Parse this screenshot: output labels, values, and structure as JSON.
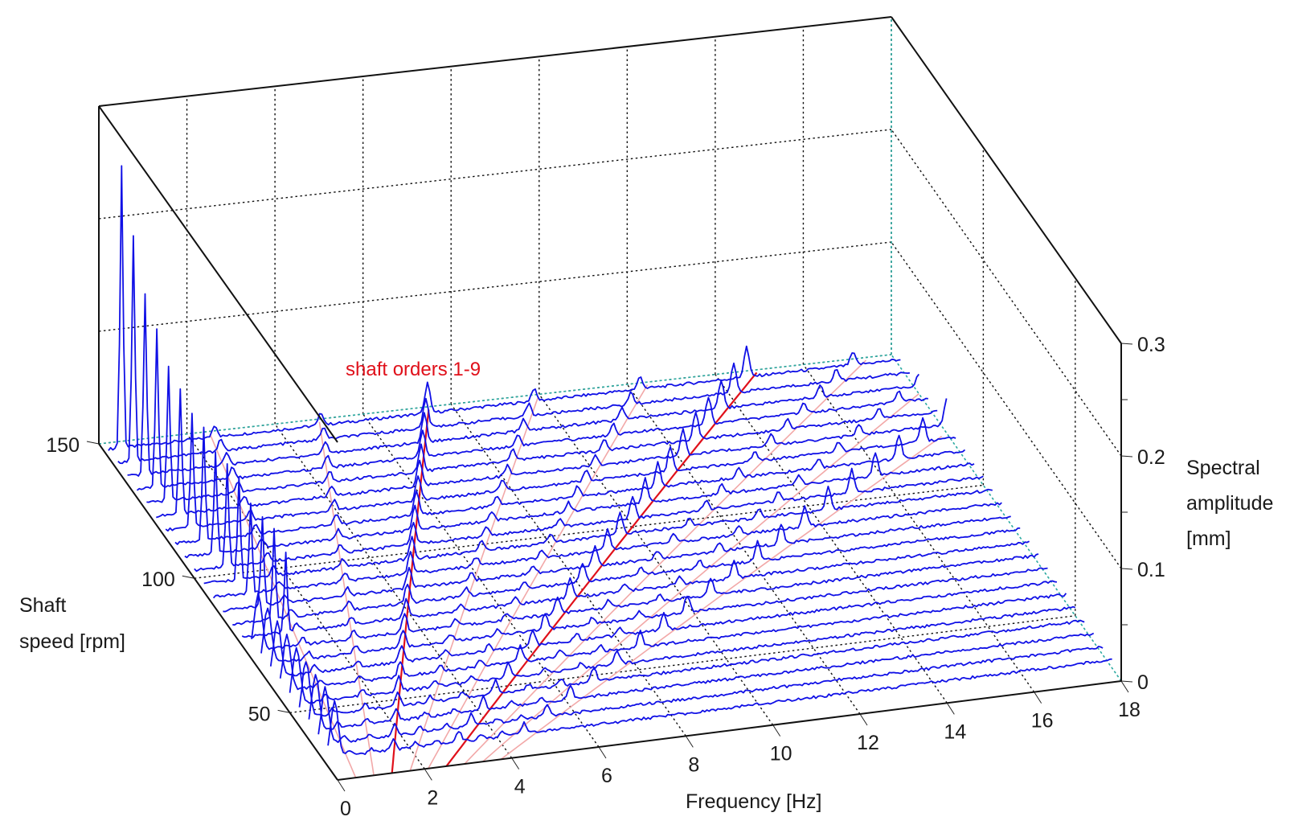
{
  "chart_data": {
    "type": "waterfall",
    "annotation": "shaft orders 1-9",
    "x_axis": {
      "label": "Frequency [Hz]",
      "ticks": [
        0,
        2,
        4,
        6,
        8,
        10,
        12,
        14,
        16,
        18
      ],
      "range": [
        0,
        18
      ]
    },
    "y_axis": {
      "label_lines": [
        "Shaft",
        "speed [rpm]"
      ],
      "ticks": [
        50,
        100,
        150
      ],
      "range": [
        25,
        150
      ]
    },
    "z_axis": {
      "label_lines": [
        "Spectral",
        "amplitude",
        "[mm]"
      ],
      "ticks": [
        "0",
        "0.1",
        "0.2",
        "0.3"
      ],
      "range": [
        0,
        0.3
      ]
    },
    "shaft_orders": [
      1,
      2,
      3,
      4,
      5,
      6,
      7,
      8,
      9
    ],
    "highlighted_orders": [
      3,
      6
    ],
    "spectra_speeds_rpm": [
      145,
      140,
      135,
      130,
      125,
      120,
      115,
      110,
      105,
      100,
      95,
      90,
      85,
      80,
      75,
      70,
      65,
      60,
      55,
      50,
      45,
      40,
      35,
      30
    ],
    "low_frequency_peaks": [
      {
        "speed": 145,
        "f": 0.3,
        "amp": 0.25
      },
      {
        "speed": 140,
        "f": 0.35,
        "amp": 0.2
      },
      {
        "speed": 135,
        "f": 0.4,
        "amp": 0.16
      },
      {
        "speed": 130,
        "f": 0.45,
        "amp": 0.14
      },
      {
        "speed": 125,
        "f": 0.5,
        "amp": 0.12
      },
      {
        "speed": 120,
        "f": 0.55,
        "amp": 0.11
      },
      {
        "speed": 115,
        "f": 0.6,
        "amp": 0.1
      },
      {
        "speed": 110,
        "f": 0.65,
        "amp": 0.1
      },
      {
        "speed": 105,
        "f": 0.7,
        "amp": 0.09
      },
      {
        "speed": 100,
        "f": 0.75,
        "amp": 0.09
      },
      {
        "speed": 95,
        "f": 0.8,
        "amp": 0.09
      },
      {
        "speed": 90,
        "f": 0.85,
        "amp": 0.08
      },
      {
        "speed": 85,
        "f": 0.9,
        "amp": 0.08
      },
      {
        "speed": 80,
        "f": 0.95,
        "amp": 0.08
      },
      {
        "speed": 75,
        "f": 1.0,
        "amp": 0.07
      }
    ],
    "colors": {
      "spectra": "#1010e6",
      "order_lines": "#f2a8a8",
      "highlighted_order_lines": "#e0101a",
      "annotation": "#e0101a",
      "back_grid": "#2aa9a0"
    }
  }
}
